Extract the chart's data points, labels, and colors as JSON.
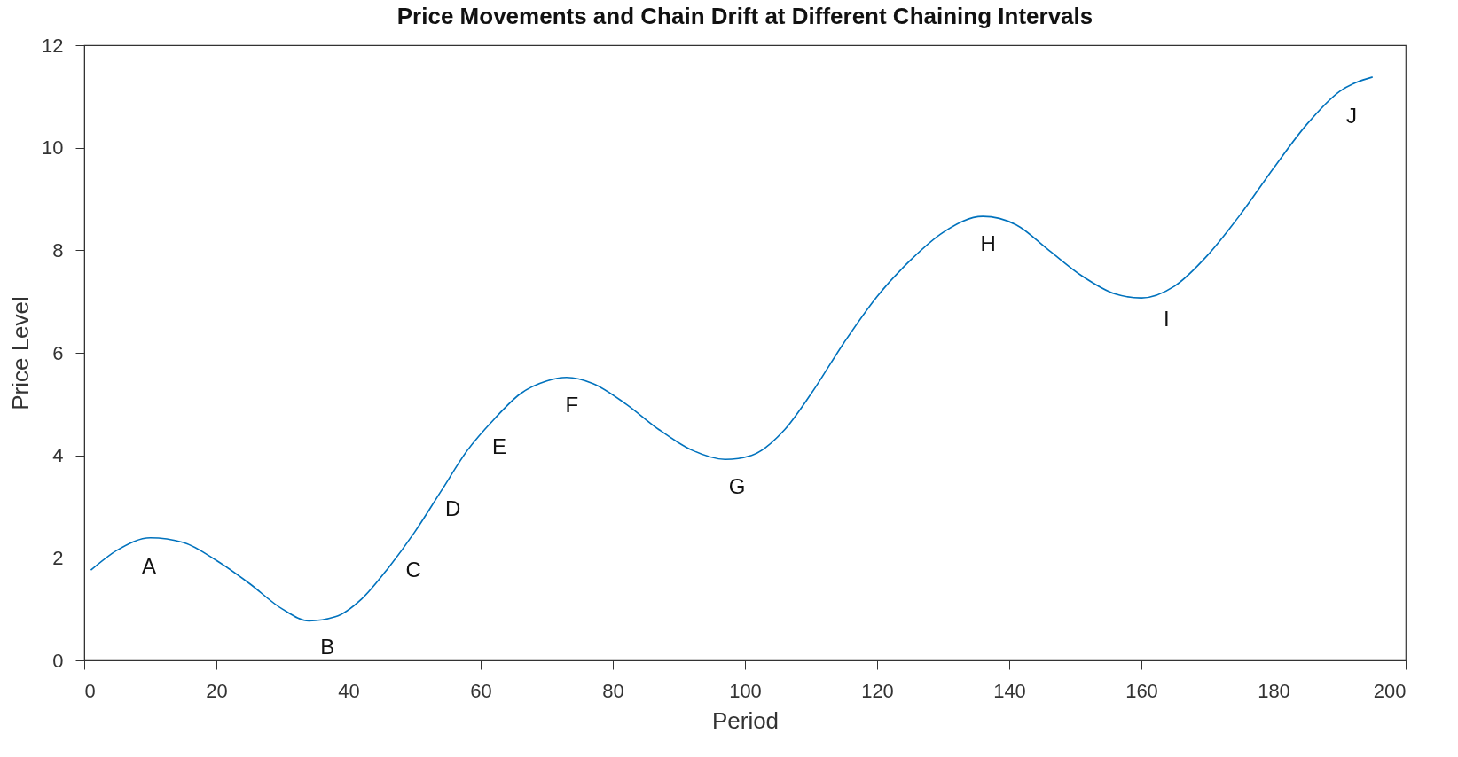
{
  "chart_data": {
    "type": "line",
    "title": "Price Movements and Chain Drift at Different Chaining Intervals",
    "xlabel": "Period",
    "ylabel": "Price Level",
    "x": [
      1,
      5,
      10,
      15,
      20,
      25,
      30,
      34,
      38,
      42,
      46,
      50,
      54,
      58,
      62,
      66,
      70,
      73,
      77,
      82,
      87,
      92,
      97,
      101,
      106,
      110,
      115,
      120,
      125,
      130,
      136,
      141,
      146,
      151,
      156,
      160,
      165,
      170,
      175,
      180,
      185,
      190,
      195
    ],
    "series": [
      {
        "color": "#0072bd",
        "values": [
          1.76,
          2.15,
          2.39,
          2.3,
          1.95,
          1.5,
          1.0,
          0.77,
          0.85,
          1.2,
          1.8,
          2.5,
          3.3,
          4.1,
          4.7,
          5.2,
          5.45,
          5.52,
          5.4,
          5.0,
          4.5,
          4.1,
          3.92,
          4.0,
          4.5,
          5.2,
          6.2,
          7.1,
          7.8,
          8.35,
          8.66,
          8.5,
          8.0,
          7.5,
          7.15,
          7.07,
          7.3,
          7.9,
          8.7,
          9.6,
          10.45,
          11.1,
          11.38
        ]
      }
    ],
    "xlim": [
      0,
      200
    ],
    "xticks": [
      0,
      20,
      40,
      60,
      80,
      100,
      120,
      140,
      160,
      180,
      200
    ],
    "ylim": [
      0,
      12
    ],
    "yticks": [
      0,
      2,
      4,
      6,
      8,
      10,
      12
    ],
    "grid": false,
    "legend": false,
    "line_style": "solid",
    "annotations": [
      {
        "text": "A",
        "x": 9,
        "y": 2.37
      },
      {
        "text": "B",
        "x": 36,
        "y": 0.79
      },
      {
        "text": "C",
        "x": 49,
        "y": 2.3
      },
      {
        "text": "D",
        "x": 55,
        "y": 3.5
      },
      {
        "text": "E",
        "x": 62,
        "y": 4.7
      },
      {
        "text": "F",
        "x": 73,
        "y": 5.52
      },
      {
        "text": "G",
        "x": 98,
        "y": 3.92
      },
      {
        "text": "H",
        "x": 136,
        "y": 8.66
      },
      {
        "text": "I",
        "x": 163,
        "y": 7.2
      },
      {
        "text": "J",
        "x": 191,
        "y": 11.15
      }
    ]
  }
}
